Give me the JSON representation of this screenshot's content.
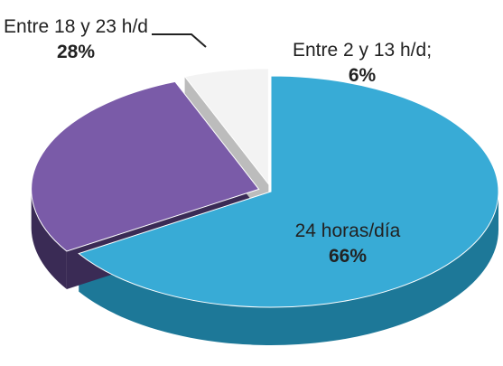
{
  "chart_data": {
    "type": "pie3d",
    "categories": [
      "24 horas/día",
      "Entre 18 y 23 h/d",
      "Entre 2 y 13 h/d;"
    ],
    "values": [
      66,
      28,
      6
    ],
    "value_labels": [
      "66%",
      "28%",
      "6%"
    ],
    "colors": [
      "#38abd6",
      "#7a5ba8",
      "#f3f3f3"
    ],
    "side_colors": [
      "#1d7898",
      "#3a2b55",
      "#bcbcbc"
    ]
  }
}
